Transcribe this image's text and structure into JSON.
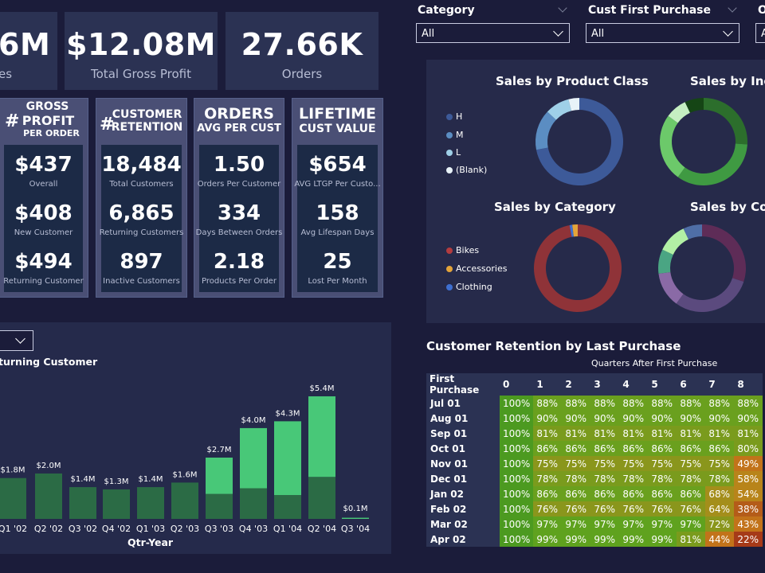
{
  "kpis": [
    {
      "value": "6M",
      "label": "es"
    },
    {
      "value": "$12.08M",
      "label": "Total Gross Profit"
    },
    {
      "value": "27.66K",
      "label": "Orders"
    }
  ],
  "cards": [
    {
      "hash": "#",
      "title_lines": [
        "GROSS",
        "PROFIT",
        "PER ORDER"
      ],
      "metrics": [
        {
          "value": "$437",
          "label": "Overall"
        },
        {
          "value": "$408",
          "label": "New Customer"
        },
        {
          "value": "$494",
          "label": "Returning Customer"
        }
      ]
    },
    {
      "hash": "#",
      "title_lines": [
        "CUSTOMER",
        "RETENTION"
      ],
      "metrics": [
        {
          "value": "18,484",
          "label": "Total Customers"
        },
        {
          "value": "6,865",
          "label": "Returning Customers"
        },
        {
          "value": "897",
          "label": "Inactive Customers"
        }
      ]
    },
    {
      "hash": "",
      "title_lines": [
        "ORDERS",
        "AVG PER CUST"
      ],
      "metrics": [
        {
          "value": "1.50",
          "label": "Orders Per Customer"
        },
        {
          "value": "334",
          "label": "Days Between Orders"
        },
        {
          "value": "2.18",
          "label": "Products Per Order"
        }
      ]
    },
    {
      "hash": "",
      "title_lines": [
        "LIFETIME",
        "CUST VALUE"
      ],
      "metrics": [
        {
          "value": "$654",
          "label": "AVG LTGP Per Custo..."
        },
        {
          "value": "158",
          "label": "Avg Lifespan Days"
        },
        {
          "value": "25",
          "label": "Lost Per Month"
        }
      ]
    }
  ],
  "slicers": [
    {
      "label": "Category",
      "value": "All"
    },
    {
      "label": "Cust First Purchase",
      "value": "All"
    },
    {
      "label": "O",
      "value": "A"
    }
  ],
  "donuts": {
    "product_class": {
      "title": "Sales by Product Class",
      "legend": [
        {
          "name": "H",
          "color": "#3d5a99"
        },
        {
          "name": "M",
          "color": "#5b8dc2"
        },
        {
          "name": "L",
          "color": "#9fd0e8"
        },
        {
          "name": "(Blank)",
          "color": "#e8f2f8"
        }
      ],
      "slices": [
        {
          "color": "#3d5a99",
          "value": 72
        },
        {
          "color": "#5b8dc2",
          "value": 15
        },
        {
          "color": "#9fd0e8",
          "value": 9
        },
        {
          "color": "#e8f2f8",
          "value": 4
        }
      ]
    },
    "income": {
      "title": "Sales by Inco",
      "slices": [
        {
          "color": "#2c6e2c",
          "value": 26
        },
        {
          "color": "#3f9a42",
          "value": 34
        },
        {
          "color": "#6cc96a",
          "value": 25
        },
        {
          "color": "#c5efc2",
          "value": 8
        },
        {
          "color": "#154515",
          "value": 7
        }
      ]
    },
    "category": {
      "title": "Sales by Category",
      "legend": [
        {
          "name": "Bikes",
          "color": "#b33c3f"
        },
        {
          "name": "Accessories",
          "color": "#e3a43a"
        },
        {
          "name": "Clothing",
          "color": "#3e6fd0"
        }
      ],
      "slices": [
        {
          "color": "#8f3338",
          "value": 97
        },
        {
          "color": "#3e6fd0",
          "value": 1
        },
        {
          "color": "#e3a43a",
          "value": 2
        }
      ]
    },
    "country": {
      "title": "Sales by Cou",
      "slices": [
        {
          "color": "#5e2c57",
          "value": 30
        },
        {
          "color": "#5b4a7e",
          "value": 30
        },
        {
          "color": "#8a6aa6",
          "value": 13
        },
        {
          "color": "#4aa583",
          "value": 9
        },
        {
          "color": "#b2f0a5",
          "value": 11
        },
        {
          "color": "#4f6ea6",
          "value": 7
        }
      ]
    }
  },
  "bar_chart": {
    "dropdown_value": "",
    "legend_text": "turning Customer",
    "xlabel": "Qtr-Year",
    "colors": {
      "dark": "#2b6b45",
      "light": "#48c878",
      "neutral": "#256846"
    },
    "chart_data": {
      "type": "bar",
      "categories": [
        "Q1 '02",
        "Q2 '02",
        "Q3 '02",
        "Q4 '02",
        "Q1 '03",
        "Q2 '03",
        "Q3 '03",
        "Q4 '03",
        "Q1 '04",
        "Q2 '04",
        "Q3 '04"
      ],
      "labels": [
        "$1.8M",
        "$2.0M",
        "$1.4M",
        "$1.3M",
        "$1.4M",
        "$1.6M",
        "$2.7M",
        "$4.0M",
        "$4.3M",
        "$5.4M",
        "$0.1M"
      ],
      "series": [
        {
          "values": [
            1.8,
            2.0,
            1.4,
            1.3,
            1.4,
            1.6,
            1.1,
            1.35,
            1.05,
            1.85,
            0.05
          ]
        },
        {
          "values": [
            0,
            0,
            0,
            0,
            0,
            0,
            1.6,
            2.65,
            3.25,
            3.55,
            0.05
          ]
        }
      ],
      "xlabel": "Qtr-Year",
      "ylim": [
        0,
        5.4
      ]
    }
  },
  "retention": {
    "title": "Customer Retention by Last Purchase",
    "subtitle": "Quarters After First Purchase",
    "row_header": "First Purchase",
    "columns": [
      "0",
      "1",
      "2",
      "3",
      "4",
      "5",
      "6",
      "7",
      "8"
    ],
    "rows": [
      {
        "label": "Jul 01",
        "values": [
          100,
          88,
          88,
          88,
          88,
          88,
          88,
          88,
          88
        ]
      },
      {
        "label": "Aug 01",
        "values": [
          100,
          90,
          90,
          90,
          90,
          90,
          90,
          90,
          90
        ]
      },
      {
        "label": "Sep 01",
        "values": [
          100,
          81,
          81,
          81,
          81,
          81,
          81,
          81,
          81
        ]
      },
      {
        "label": "Oct 01",
        "values": [
          100,
          86,
          86,
          86,
          86,
          86,
          86,
          86,
          80
        ]
      },
      {
        "label": "Nov 01",
        "values": [
          100,
          75,
          75,
          75,
          75,
          75,
          75,
          75,
          49
        ]
      },
      {
        "label": "Dec 01",
        "values": [
          100,
          78,
          78,
          78,
          78,
          78,
          78,
          78,
          58
        ]
      },
      {
        "label": "Jan 02",
        "values": [
          100,
          86,
          86,
          86,
          86,
          86,
          86,
          68,
          54
        ]
      },
      {
        "label": "Feb 02",
        "values": [
          100,
          76,
          76,
          76,
          76,
          76,
          76,
          64,
          38
        ]
      },
      {
        "label": "Mar 02",
        "values": [
          100,
          97,
          97,
          97,
          97,
          97,
          97,
          72,
          43
        ]
      },
      {
        "label": "Apr 02",
        "values": [
          100,
          99,
          99,
          99,
          99,
          99,
          81,
          44,
          22
        ]
      }
    ]
  }
}
